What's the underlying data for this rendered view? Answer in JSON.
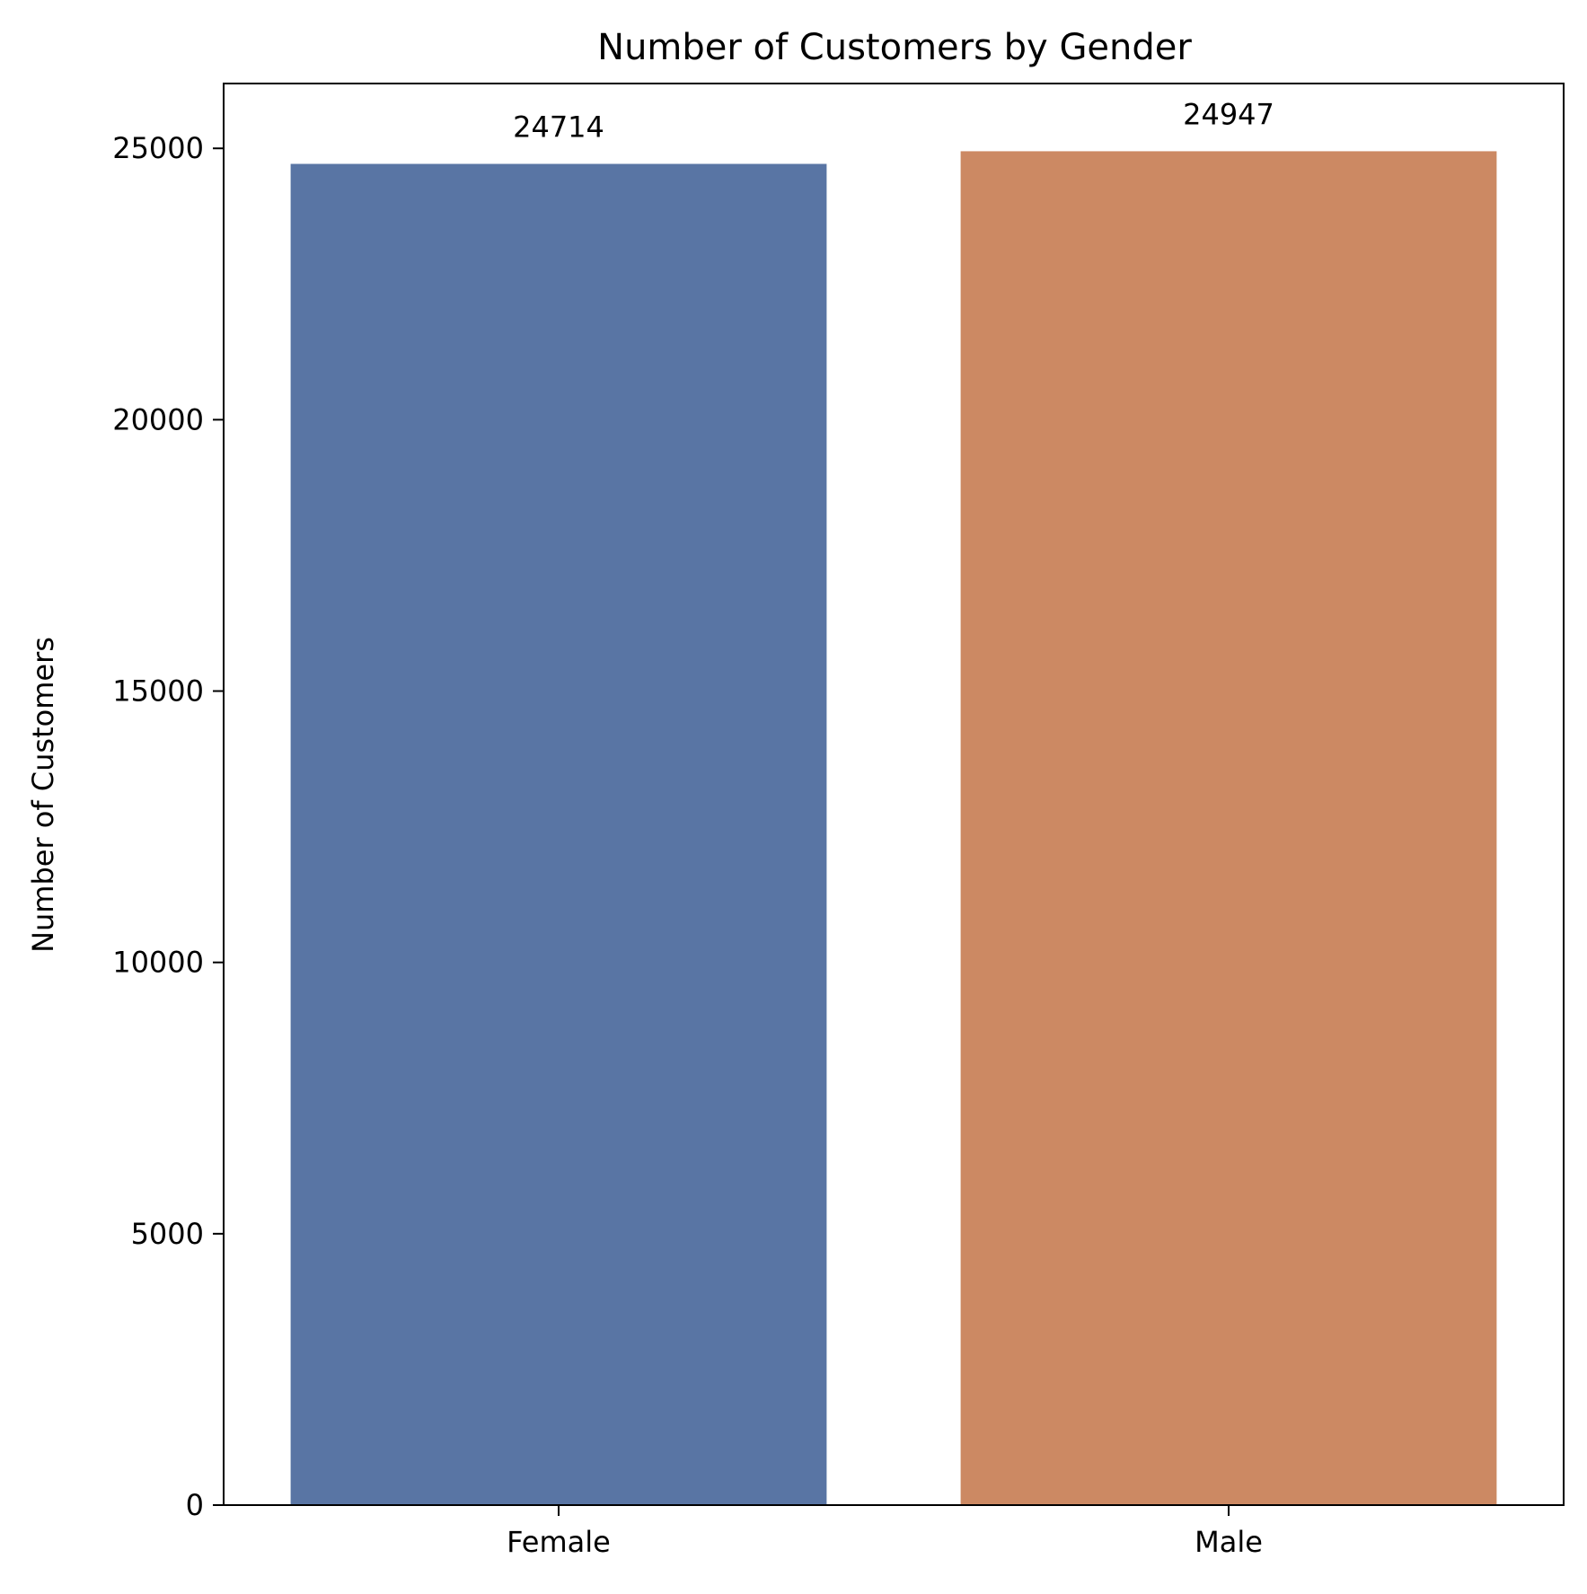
{
  "chart_data": {
    "type": "bar",
    "title": "Number of Customers by Gender",
    "xlabel": "",
    "ylabel": "Number of Customers",
    "categories": [
      "Female",
      "Male"
    ],
    "values": [
      24714,
      24947
    ],
    "value_labels": [
      "24714",
      "24947"
    ],
    "colors": [
      "#5975a4",
      "#cc8963"
    ],
    "ylim": [
      0,
      26195
    ],
    "yticks": [
      0,
      5000,
      10000,
      15000,
      20000,
      25000
    ],
    "ytick_labels": [
      "0",
      "5000",
      "10000",
      "15000",
      "20000",
      "25000"
    ],
    "grid": false,
    "legend": "none"
  }
}
